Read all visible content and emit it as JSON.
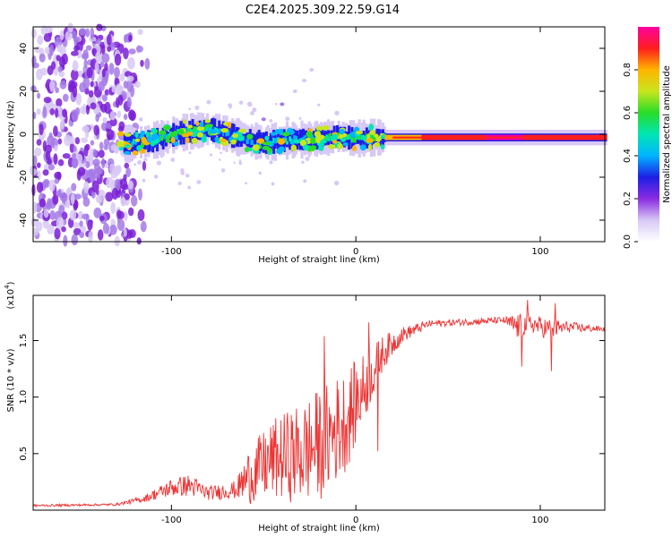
{
  "title": "C2E4.2025.309.22.59.G14",
  "chart_data": [
    {
      "type": "heatmap",
      "name": "spectrogram",
      "xlabel": "Height of straight line (km)",
      "ylabel": "Frequency (Hz)",
      "xlim": [
        -175,
        135
      ],
      "ylim": [
        -50,
        50
      ],
      "xticks": [
        -100,
        0,
        100
      ],
      "yticks": [
        -40,
        -20,
        0,
        20,
        40
      ],
      "xtick_labels": [
        "-100",
        "0",
        "100"
      ],
      "ytick_labels": [
        "-40",
        "-20",
        "0",
        "20",
        "40"
      ],
      "colorbar": {
        "label": "Normalized spectral amplitude",
        "range": [
          0,
          1
        ],
        "ticks": [
          0.0,
          0.2,
          0.4,
          0.6,
          0.8
        ],
        "tick_labels": [
          "0.0",
          "0.2",
          "0.4",
          "0.6",
          "0.8"
        ],
        "colors": [
          "#ffffff",
          "#d8c8f5",
          "#8a2be2",
          "#1e1ee6",
          "#00b4ff",
          "#00e6b4",
          "#28dc28",
          "#c8e61e",
          "#ffb400",
          "#ff1e1e",
          "#ff00a0"
        ]
      },
      "ridge": [
        {
          "x": -125,
          "f": -4.5,
          "a": 0.45
        },
        {
          "x": -115,
          "f": -3.5,
          "a": 0.5
        },
        {
          "x": -105,
          "f": -2.0,
          "a": 0.6
        },
        {
          "x": -97,
          "f": 0.5,
          "a": 0.7
        },
        {
          "x": -88,
          "f": 1.5,
          "a": 0.65
        },
        {
          "x": -80,
          "f": 2.5,
          "a": 0.55
        },
        {
          "x": -72,
          "f": 0.5,
          "a": 0.5
        },
        {
          "x": -62,
          "f": -2.0,
          "a": 0.45
        },
        {
          "x": -50,
          "f": -4.0,
          "a": 0.45
        },
        {
          "x": -40,
          "f": -3.0,
          "a": 0.5
        },
        {
          "x": -30,
          "f": -2.5,
          "a": 0.55
        },
        {
          "x": -20,
          "f": -2.0,
          "a": 0.6
        },
        {
          "x": -10,
          "f": -1.0,
          "a": 0.75
        },
        {
          "x": 0,
          "f": -2.0,
          "a": 0.7
        },
        {
          "x": 10,
          "f": -1.5,
          "a": 0.75
        },
        {
          "x": 25,
          "f": -1.5,
          "a": 0.8
        },
        {
          "x": 45,
          "f": -1.5,
          "a": 0.9
        },
        {
          "x": 70,
          "f": -1.5,
          "a": 0.95
        },
        {
          "x": 90,
          "f": -1.5,
          "a": 0.95
        },
        {
          "x": 110,
          "f": -1.5,
          "a": 0.9
        },
        {
          "x": 135,
          "f": -1.5,
          "a": 0.9
        }
      ],
      "branch": [
        {
          "x": -50,
          "f": 7
        },
        {
          "x": -40,
          "f": 14
        },
        {
          "x": -33,
          "f": 20
        },
        {
          "x": -28,
          "f": 25
        },
        {
          "x": -24,
          "f": 30
        }
      ]
    },
    {
      "type": "line",
      "name": "snr",
      "xlabel": "Height of straight line (km)",
      "ylabel": "SNR (10 * v/v)",
      "yscale_note": "(x10",
      "yscale_exp": "4",
      "xlim": [
        -175,
        135
      ],
      "ylim": [
        0,
        1.9
      ],
      "xticks": [
        -100,
        0,
        100
      ],
      "yticks": [
        0.5,
        1.0,
        1.5
      ],
      "xtick_labels": [
        "-100",
        "0",
        "100"
      ],
      "ytick_labels": [
        "0.5",
        "1.0",
        "1.5"
      ],
      "color": "#ee3333",
      "envelope": [
        {
          "x": -175,
          "base": 0.04,
          "amp": 0.01
        },
        {
          "x": -130,
          "base": 0.05,
          "amp": 0.01
        },
        {
          "x": -115,
          "base": 0.1,
          "amp": 0.03
        },
        {
          "x": -100,
          "base": 0.2,
          "amp": 0.08
        },
        {
          "x": -90,
          "base": 0.22,
          "amp": 0.1
        },
        {
          "x": -80,
          "base": 0.15,
          "amp": 0.06
        },
        {
          "x": -65,
          "base": 0.18,
          "amp": 0.08
        },
        {
          "x": -58,
          "base": 0.3,
          "amp": 0.25
        },
        {
          "x": -45,
          "base": 0.45,
          "amp": 0.35
        },
        {
          "x": -30,
          "base": 0.5,
          "amp": 0.45
        },
        {
          "x": -18,
          "base": 0.6,
          "amp": 0.5
        },
        {
          "x": -5,
          "base": 0.8,
          "amp": 0.45
        },
        {
          "x": 5,
          "base": 1.1,
          "amp": 0.3
        },
        {
          "x": 15,
          "base": 1.4,
          "amp": 0.15
        },
        {
          "x": 25,
          "base": 1.55,
          "amp": 0.07
        },
        {
          "x": 40,
          "base": 1.65,
          "amp": 0.03
        },
        {
          "x": 80,
          "base": 1.68,
          "amp": 0.03
        },
        {
          "x": 88,
          "base": 1.62,
          "amp": 0.12
        },
        {
          "x": 95,
          "base": 1.65,
          "amp": 0.08
        },
        {
          "x": 105,
          "base": 1.6,
          "amp": 0.1
        },
        {
          "x": 115,
          "base": 1.62,
          "amp": 0.05
        },
        {
          "x": 135,
          "base": 1.6,
          "amp": 0.02
        }
      ],
      "spikes": [
        {
          "x": 93,
          "y": 1.86
        },
        {
          "x": 90,
          "y": 1.27
        },
        {
          "x": 106,
          "y": 1.23
        },
        {
          "x": 108,
          "y": 1.83
        },
        {
          "x": 7,
          "y": 1.66
        },
        {
          "x": -17,
          "y": 1.54
        },
        {
          "x": 12,
          "y": 0.52
        }
      ]
    }
  ]
}
